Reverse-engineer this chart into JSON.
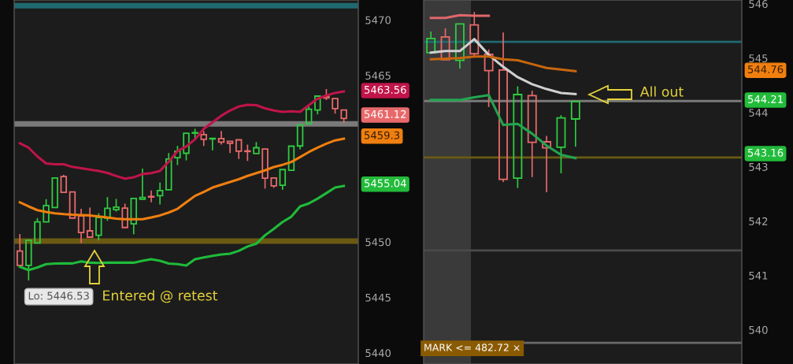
{
  "chart_data": [
    {
      "type": "candlestick",
      "tick_labels": "y",
      "categories": [
        null,
        null,
        null,
        null,
        null,
        null,
        null,
        null,
        null,
        null,
        null,
        null,
        null,
        null,
        null,
        null,
        null,
        null,
        null,
        null,
        null,
        null,
        null,
        null,
        null,
        null,
        null,
        null,
        null,
        null,
        null,
        null,
        null,
        null,
        null,
        null,
        null,
        null,
        null
      ],
      "ohlc": [
        [
          5449.18,
          5450.71,
          5447.8,
          5447.88
        ],
        [
          5447.88,
          5450.16,
          5446.53,
          5450.16
        ],
        [
          5449.9,
          5452.15,
          5449.9,
          5451.8
        ],
        [
          5451.8,
          5453.85,
          5451.8,
          5453.28
        ],
        [
          5453.1,
          5455.77,
          5453.1,
          5455.77
        ],
        [
          5455.89,
          5456.05,
          5454.47,
          5454.47
        ],
        [
          5454.5,
          5454.5,
          5452.15,
          5452.15
        ],
        [
          5452.34,
          5452.98,
          5449.9,
          5450.85
        ],
        [
          5451.0,
          5453.1,
          5450.43,
          5450.43
        ],
        [
          5450.6,
          5452.58,
          5450.14,
          5452.2
        ],
        [
          5452.15,
          5454.04,
          5451.9,
          5453.03
        ],
        [
          5452.9,
          5453.88,
          5452.74,
          5453.14
        ],
        [
          5453.05,
          5453.45,
          5451.3,
          5451.3
        ],
        [
          5451.63,
          5453.92,
          5450.69,
          5453.92
        ],
        [
          5453.85,
          5456.6,
          5453.85,
          5454.0
        ],
        [
          5454.1,
          5454.63,
          5453.57,
          5454.05
        ],
        [
          5454.17,
          5455.34,
          5453.38,
          5454.63
        ],
        [
          5454.7,
          5458.01,
          5454.7,
          5457.47
        ],
        [
          5457.59,
          5458.65,
          5456.93,
          5458.18
        ],
        [
          5457.99,
          5459.79,
          5457.35,
          5459.79
        ],
        [
          5459.8,
          5460.19,
          5459.2,
          5459.85
        ],
        [
          5459.67,
          5460.0,
          5458.65,
          5459.24
        ],
        [
          5459.28,
          5459.33,
          5458.25,
          5459.33
        ],
        [
          5459.31,
          5460.0,
          5458.77,
          5459.0
        ],
        [
          5459.06,
          5459.06,
          5458.01,
          5458.89
        ],
        [
          5459.2,
          5459.2,
          5457.47,
          5458.18
        ],
        [
          5458.2,
          5458.77,
          5457.3,
          5458.15
        ],
        [
          5457.97,
          5459.0,
          5457.97,
          5458.49
        ],
        [
          5458.37,
          5458.37,
          5454.8,
          5455.74
        ],
        [
          5455.77,
          5455.77,
          5454.87,
          5455.06
        ],
        [
          5455.11,
          5456.52,
          5454.7,
          5456.52
        ],
        [
          5456.45,
          5458.63,
          5456.45,
          5458.63
        ],
        [
          5458.65,
          5460.55,
          5458.35,
          5460.55
        ],
        [
          5460.66,
          5462.36,
          5460.66,
          5461.96
        ],
        [
          5461.89,
          5463.14,
          5461.49,
          5463.14
        ],
        [
          5463.14,
          5463.78,
          5462.79,
          5462.98
        ],
        [
          5462.91,
          5462.91,
          5461.56,
          5462.01
        ],
        [
          5461.89,
          5461.89,
          5460.71,
          5461.12
        ],
        null
      ],
      "colors": [
        "#e8696b",
        "#2ecc40",
        "#2ecc40",
        "#2ecc40",
        "#2ecc40",
        "#e8696b",
        "#e8696b",
        "#e8696b",
        "#e8696b",
        "#2ecc40",
        "#2ecc40",
        "#2ecc40",
        "#e8696b",
        "#2ecc40",
        "#2ecc40",
        "#e8696b",
        "#2ecc40",
        "#2ecc40",
        "#2ecc40",
        "#2ecc40",
        "#2ecc40",
        "#e8696b",
        "#2ecc40",
        "#e8696b",
        "#e8696b",
        "#e8696b",
        "#e8696b",
        "#2ecc40",
        "#e8696b",
        "#e8696b",
        "#2ecc40",
        "#2ecc40",
        "#2ecc40",
        "#2ecc40",
        "#2ecc40",
        "#e8696b",
        "#e8696b",
        "#e8696b",
        null
      ],
      "series": [
        {
          "type": "line",
          "color": "#c0144a",
          "values": [
            5458.89,
            5458.49,
            5457.71,
            5457.07,
            5457.0,
            5457.0,
            5456.76,
            5456.64,
            5456.52,
            5456.4,
            5456.22,
            5455.94,
            5455.7,
            5455.82,
            5456.12,
            5456.2,
            5456.4,
            5457.23,
            5458.18,
            5458.6,
            5459.24,
            5460.19,
            5460.78,
            5461.37,
            5461.84,
            5462.2,
            5462.36,
            5462.32,
            5462.04,
            5461.84,
            5461.72,
            5461.77,
            5461.72,
            5462.32,
            5462.91,
            5463.2,
            5463.43,
            5463.56,
            null
          ]
        },
        {
          "type": "line",
          "color": "#f07f10",
          "values": [
            5453.57,
            5453.2,
            5452.86,
            5452.7,
            5452.58,
            5452.5,
            5452.45,
            5452.42,
            5452.39,
            5452.3,
            5452.2,
            5452.1,
            5452.04,
            5452.04,
            5452.04,
            5452.2,
            5452.39,
            5452.65,
            5452.98,
            5453.57,
            5454.15,
            5454.5,
            5454.9,
            5455.15,
            5455.4,
            5455.65,
            5455.95,
            5456.2,
            5456.45,
            5456.75,
            5456.95,
            5457.2,
            5457.65,
            5458.1,
            5458.5,
            5458.85,
            5459.15,
            5459.3,
            null
          ]
        },
        {
          "type": "line",
          "color": "#1fbb3a",
          "values": [
            5447.76,
            5447.47,
            5447.7,
            5448.0,
            5448.05,
            5448.06,
            5448.06,
            5448.25,
            5448.13,
            5448.1,
            5448.13,
            5448.13,
            5448.13,
            5448.13,
            5448.3,
            5448.44,
            5448.3,
            5448.05,
            5448.0,
            5447.87,
            5448.44,
            5448.6,
            5448.75,
            5448.87,
            5448.94,
            5449.2,
            5449.59,
            5449.84,
            5450.6,
            5451.18,
            5451.8,
            5452.27,
            5453.2,
            5453.47,
            5453.9,
            5454.4,
            5454.9,
            5455.04,
            null
          ]
        }
      ],
      "ylim": [
        5439.0,
        5471.8
      ],
      "yticks": [
        5440,
        5445,
        5450,
        5465,
        5470
      ],
      "ref_lines": [
        {
          "axis": "y",
          "value": 5471.28,
          "color": "#1f6a70"
        },
        {
          "axis": "y",
          "value": 5460.64,
          "color": "#7a7a7a"
        },
        {
          "axis": "y",
          "value": 5450.07,
          "color": "#6b5a12"
        }
      ],
      "annotations": [
        "Lo: 5446.53",
        "Entered @ retest",
        "5463.56",
        "5461.12",
        "5459.3",
        "5455.04"
      ]
    },
    {
      "type": "candlestick",
      "tick_labels": "y",
      "categories": [
        null,
        null,
        null,
        null,
        null,
        null,
        null,
        null,
        null,
        null,
        null,
        null,
        null,
        null,
        null,
        null,
        null,
        null,
        null,
        null,
        null,
        null
      ],
      "ohlc": [
        [
          545.1,
          545.49,
          545.1,
          545.36
        ],
        [
          545.39,
          545.55,
          544.97,
          544.97
        ],
        [
          544.96,
          545.63,
          544.81,
          545.63
        ],
        [
          545.61,
          545.85,
          545.01,
          545.08
        ],
        [
          545.07,
          545.16,
          544.1,
          544.77
        ],
        [
          544.78,
          545.47,
          542.72,
          542.77
        ],
        [
          542.79,
          544.48,
          542.61,
          544.33
        ],
        [
          544.31,
          544.4,
          542.81,
          543.45
        ],
        [
          543.46,
          543.57,
          542.53,
          543.35
        ],
        [
          543.36,
          543.95,
          542.88,
          543.9
        ],
        [
          543.88,
          544.2,
          543.37,
          544.2
        ],
        null,
        null,
        null,
        null,
        null,
        null,
        null,
        null,
        null,
        null,
        null
      ],
      "colors": [
        "#2ecc40",
        "#e8696b",
        "#2ecc40",
        "#e8696b",
        "#e8696b",
        "#e8696b",
        "#2ecc40",
        "#e8696b",
        "#e8696b",
        "#2ecc40",
        "#2ecc40",
        null,
        null,
        null,
        null,
        null,
        null,
        null,
        null,
        null,
        null,
        null
      ],
      "series": [
        {
          "type": "line",
          "color": "#e0676b",
          "values": [
            545.74,
            545.74,
            545.79,
            545.78,
            545.78,
            null,
            null,
            null,
            null,
            null,
            null,
            null,
            null,
            null,
            null,
            null,
            null,
            null,
            null,
            null,
            null,
            null
          ]
        },
        {
          "type": "line",
          "color": "#d0d0d0",
          "values": [
            545.1,
            545.13,
            545.13,
            545.35,
            545.06,
            544.84,
            544.65,
            544.52,
            544.43,
            544.36,
            544.34,
            null,
            null,
            null,
            null,
            null,
            null,
            null,
            null,
            null,
            null,
            null
          ]
        },
        {
          "type": "line",
          "color": "#c8660e",
          "values": [
            544.98,
            544.99,
            545.0,
            545.03,
            545.03,
            544.98,
            544.96,
            544.89,
            544.82,
            544.79,
            544.76,
            null,
            null,
            null,
            null,
            null,
            null,
            null,
            null,
            null,
            null,
            null
          ]
        },
        {
          "type": "line",
          "color": "#23a550",
          "values": [
            544.23,
            544.23,
            544.23,
            544.28,
            544.32,
            543.77,
            543.79,
            543.61,
            543.39,
            543.22,
            543.16,
            null,
            null,
            null,
            null,
            null,
            null,
            null,
            null,
            null,
            null,
            null
          ]
        }
      ],
      "ylim": [
        539.37,
        546.07
      ],
      "yticks": [
        540,
        541,
        542,
        543,
        544,
        545,
        546
      ],
      "ref_lines": [
        {
          "axis": "y",
          "value": 545.3,
          "color": "#1f6a70"
        },
        {
          "axis": "y",
          "value": 544.21,
          "color": "#7a7a7a"
        },
        {
          "axis": "y",
          "value": 543.17,
          "color": "#6b5a12"
        },
        {
          "axis": "y",
          "value": 541.46,
          "color": "#4a4a4a"
        },
        {
          "axis": "y",
          "value": 539.76,
          "color": "#6a6a6a"
        }
      ],
      "annotations": [
        "All out",
        "544.76",
        "544.21",
        "543.16",
        "MARK <= 482.72 ×"
      ]
    }
  ]
}
